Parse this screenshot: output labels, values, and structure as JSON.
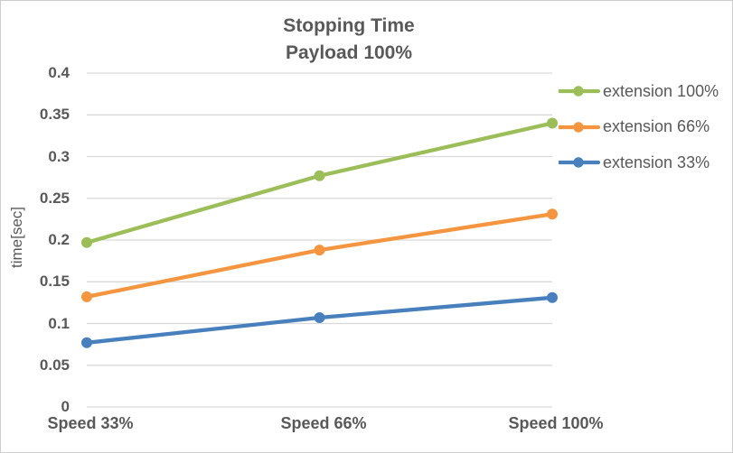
{
  "window": {
    "background": "#FFFFFF",
    "border_color": "#CDCDCD"
  },
  "chart": {
    "title_line1": "Stopping Time",
    "title_line2": "Payload 100%"
  },
  "chart_data": {
    "type": "line",
    "title": "Stopping Time",
    "subtitle": "Payload 100%",
    "categories": [
      "Speed 33%",
      "Speed 66%",
      "Speed 100%"
    ],
    "series": [
      {
        "name": "extension 100%",
        "slug": "extension-100",
        "color": "#9CBE59",
        "values": [
          0.197,
          0.277,
          0.34
        ]
      },
      {
        "name": "extension 66%",
        "slug": "extension-66",
        "color": "#F5953F",
        "values": [
          0.132,
          0.188,
          0.231
        ]
      },
      {
        "name": "extension 33%",
        "slug": "extension-33",
        "color": "#4880BE",
        "values": [
          0.077,
          0.107,
          0.131
        ]
      }
    ],
    "xlabel": "",
    "ylabel": "time[sec]",
    "ylim": [
      0,
      0.4
    ],
    "ytick_values": [
      0,
      0.05,
      0.1,
      0.15,
      0.2,
      0.25,
      0.3,
      0.35,
      0.4
    ],
    "ytick_labels": [
      "0",
      "0.05",
      "0.1",
      "0.15",
      "0.2",
      "0.25",
      "0.3",
      "0.35",
      "0.4"
    ],
    "grid": true,
    "marker": "circle",
    "legend_position": "right",
    "colors": {
      "gridline": "#D9D9D9",
      "text": "#595959"
    }
  }
}
